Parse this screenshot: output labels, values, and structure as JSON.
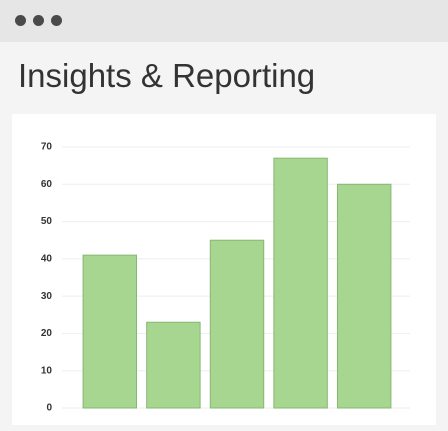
{
  "chart_data": {
    "type": "bar",
    "title": "Insights & Reporting",
    "categories": [
      null,
      null,
      null,
      null,
      null
    ],
    "values": [
      41,
      23,
      45,
      67,
      60
    ],
    "color": "#a6d68f",
    "ylim": [
      0,
      70
    ],
    "yticks": [
      0,
      10,
      20,
      30,
      40,
      50,
      60,
      70
    ],
    "grid": true
  }
}
